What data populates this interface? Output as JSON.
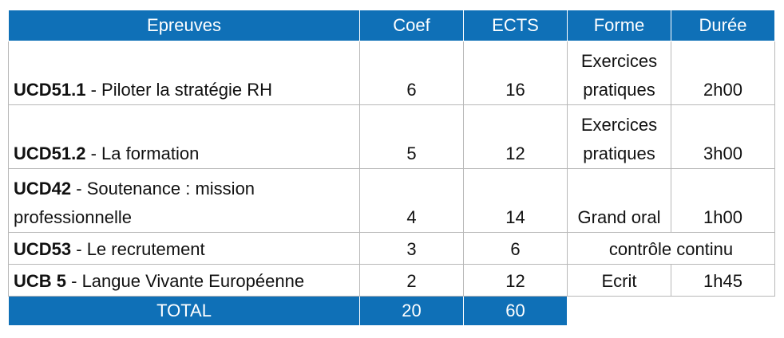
{
  "header": {
    "epreuves": "Epreuves",
    "coef": "Coef",
    "ects": "ECTS",
    "forme": "Forme",
    "duree": "Durée"
  },
  "rows": [
    {
      "code": "UCD51.1",
      "title": " - Piloter la stratégie RH",
      "coef": "6",
      "ects": "16",
      "forme_l1": "Exercices",
      "forme_l2": "pratiques",
      "duree": "2h00"
    },
    {
      "code": "UCD51.2",
      "title": " - La formation",
      "coef": "5",
      "ects": "12",
      "forme_l1": "Exercices",
      "forme_l2": "pratiques",
      "duree": "3h00"
    },
    {
      "code": "UCD42",
      "title": " - Soutenance : mission",
      "title_l2": "professionnelle",
      "coef": "4",
      "ects": "14",
      "forme": "Grand oral",
      "duree": "1h00"
    },
    {
      "code": "UCD53",
      "title": " - Le recrutement",
      "coef": "3",
      "ects": "6",
      "forme_merged": "contrôle continu"
    },
    {
      "code": "UCB 5",
      "title": " - Langue Vivante Européenne",
      "coef": "2",
      "ects": "12",
      "forme": "Ecrit",
      "duree": "1h45"
    }
  ],
  "total": {
    "label": "TOTAL",
    "coef": "20",
    "ects": "60"
  },
  "colors": {
    "header_bg": "#0f70b7",
    "header_text": "#ffffff"
  }
}
